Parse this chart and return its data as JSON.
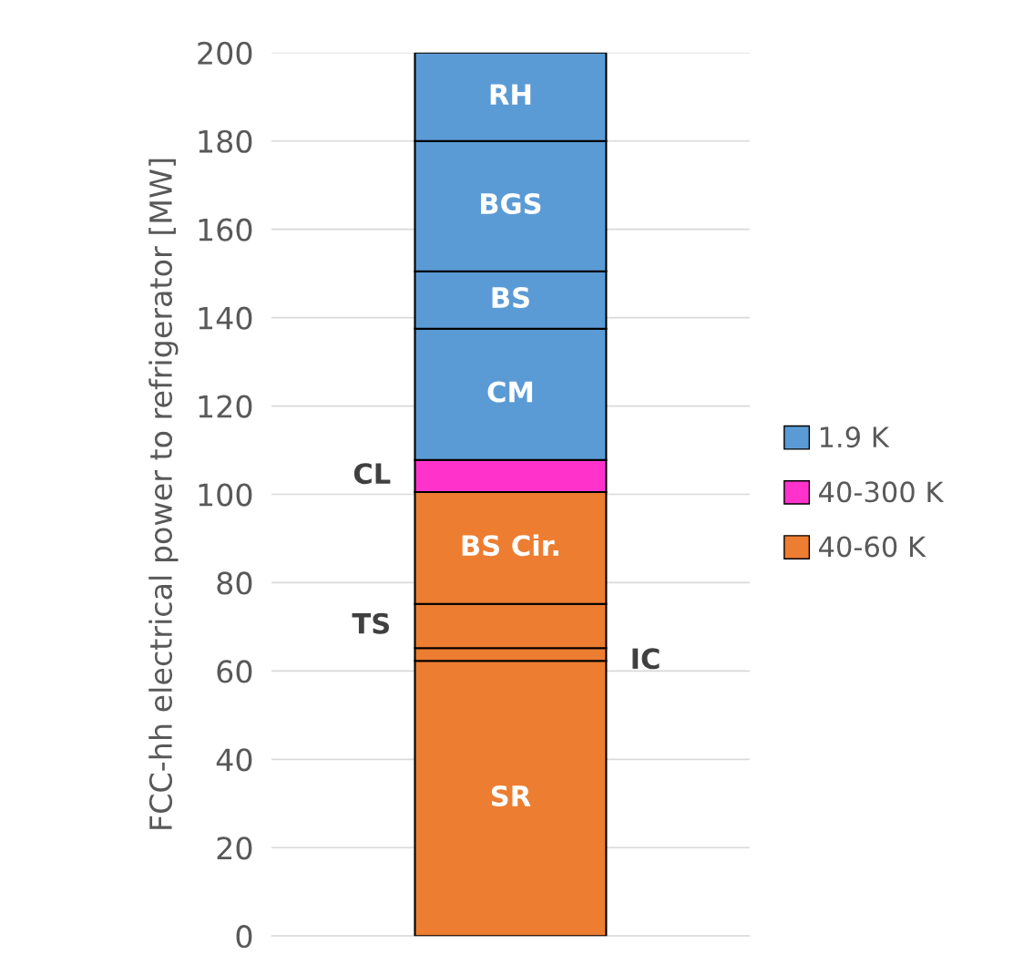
{
  "chart_data": {
    "type": "bar",
    "stacked": true,
    "ylabel": "FCC-hh electrical power to refrigerator [MW]",
    "categories": [
      null
    ],
    "series": [
      {
        "name": "40-60 K",
        "color": "#ed7d31",
        "values": [
          62.3
        ]
      },
      {
        "color": "#ed7d31",
        "values": [
          2.9
        ]
      },
      {
        "color": "#ed7d31",
        "values": [
          10
        ]
      },
      {
        "color": "#ed7d31",
        "values": [
          25.3
        ]
      },
      {
        "name": "40-300 K",
        "color": "#ff33cc",
        "values": [
          7.3
        ]
      },
      {
        "name": "1.9 K",
        "color": "#5b9bd5",
        "values": [
          29.7
        ]
      },
      {
        "color": "#5b9bd5",
        "values": [
          13
        ]
      },
      {
        "color": "#5b9bd5",
        "values": [
          29.5
        ]
      },
      {
        "color": "#5b9bd5",
        "values": [
          20
        ]
      }
    ],
    "annotations": [
      "SR",
      "IC",
      "TS",
      "BS Cir.",
      "CL",
      "CM",
      "BS",
      "BGS",
      "RH"
    ],
    "ylim": [
      0,
      200
    ],
    "yticks": [
      0,
      20,
      40,
      60,
      80,
      100,
      120,
      140,
      160,
      180,
      200
    ],
    "grid": "y",
    "legend": "right",
    "tick_labels": "y"
  }
}
